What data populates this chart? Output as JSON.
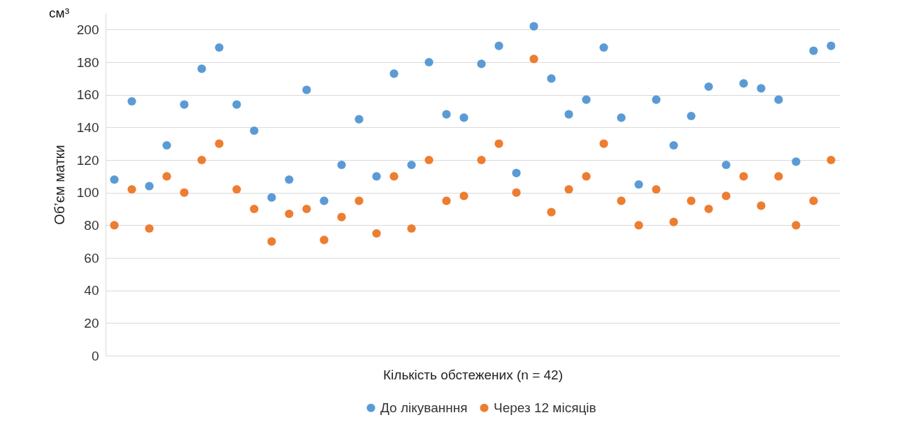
{
  "chart_data": {
    "type": "scatter",
    "xlabel": "Кількість обстежених (n = 42)",
    "ylabel": "Об’єм матки",
    "annotations": [
      "см³"
    ],
    "categories": [
      null,
      null,
      null,
      null,
      null,
      null,
      null,
      null,
      null,
      null,
      null,
      null,
      null,
      null,
      null,
      null,
      null,
      null,
      null,
      null,
      null,
      null,
      null,
      null,
      null,
      null,
      null,
      null,
      null,
      null,
      null,
      null,
      null,
      null,
      null,
      null,
      null,
      null,
      null,
      null,
      null,
      null
    ],
    "series": [
      {
        "name": "До лікуванння",
        "color": "#5b9bd5",
        "values": [
          108,
          156,
          104,
          129,
          154,
          176,
          189,
          154,
          138,
          97,
          108,
          163,
          95,
          117,
          145,
          110,
          173,
          117,
          180,
          148,
          146,
          179,
          190,
          112,
          202,
          170,
          148,
          157,
          189,
          146,
          105,
          157,
          129,
          147,
          165,
          117,
          167,
          164,
          157,
          119,
          187,
          190
        ]
      },
      {
        "name": "Через 12 місяців",
        "color": "#ed7d31",
        "values": [
          80,
          102,
          78,
          110,
          100,
          120,
          130,
          102,
          90,
          70,
          87,
          90,
          71,
          85,
          95,
          75,
          110,
          78,
          120,
          95,
          98,
          120,
          130,
          100,
          182,
          88,
          102,
          110,
          130,
          95,
          80,
          102,
          82,
          95,
          90,
          98,
          110,
          92,
          110,
          80,
          95,
          120
        ]
      }
    ],
    "ylim": [
      0,
      210
    ],
    "yticks": [
      0,
      20,
      40,
      60,
      80,
      100,
      120,
      140,
      160,
      180,
      200
    ],
    "grid": "y",
    "legend": "bottom",
    "marker": "circle"
  }
}
